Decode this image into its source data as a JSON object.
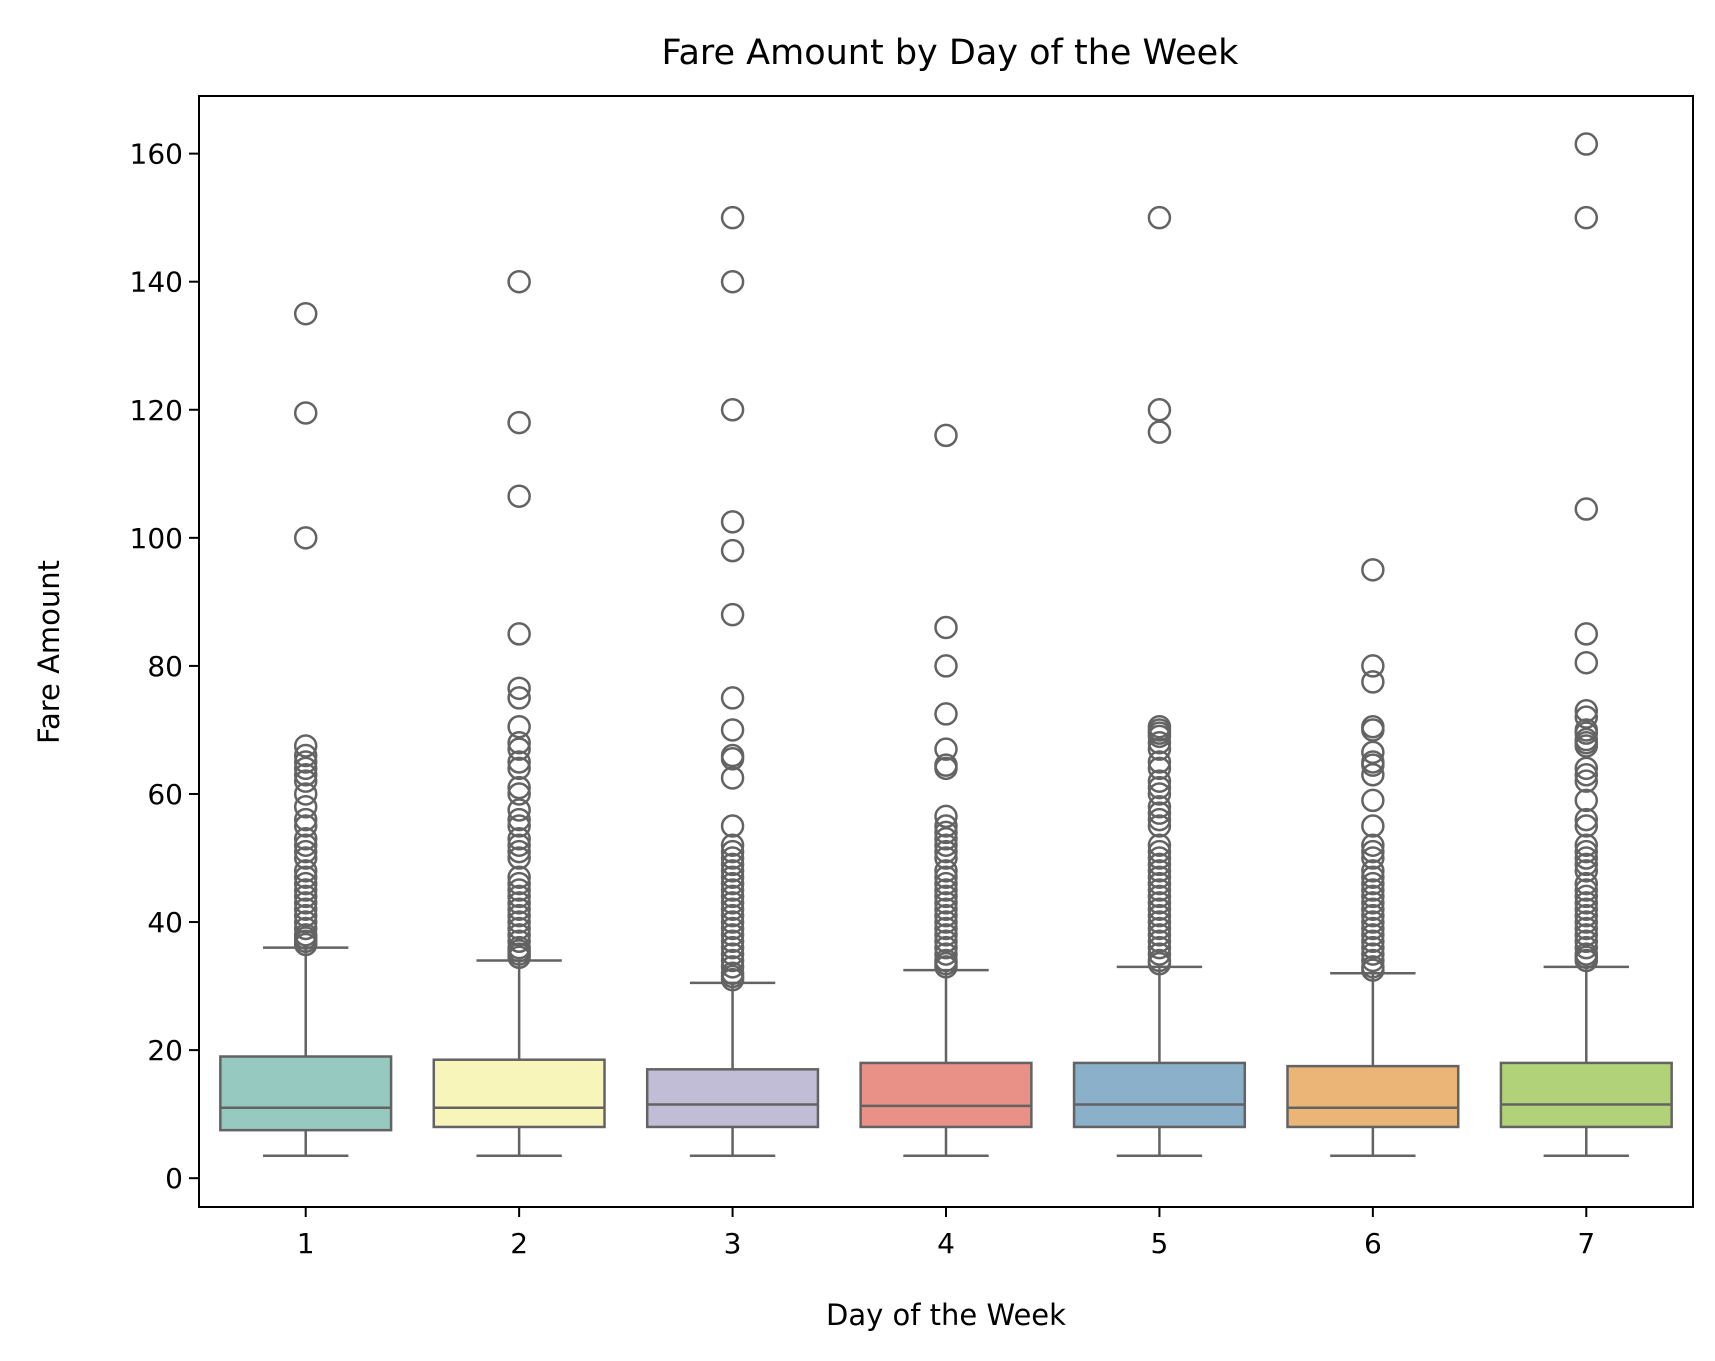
{
  "chart_data": {
    "type": "box",
    "title": "Fare Amount by Day of the Week",
    "xlabel": "Day of the Week",
    "ylabel": "Fare Amount",
    "categories": [
      "1",
      "2",
      "3",
      "4",
      "5",
      "6",
      "7"
    ],
    "y_ticks": [
      0,
      20,
      40,
      60,
      80,
      100,
      120,
      140,
      160
    ],
    "ylim": [
      -4.5,
      169
    ],
    "grid": false,
    "legend": "none",
    "line_color": "#636363",
    "boxes": [
      {
        "category": "1",
        "color": "#96c9c0",
        "whisker_low": 3.5,
        "q1": 7.5,
        "median": 11.0,
        "q3": 19.0,
        "whisker_high": 36.0,
        "outliers": [
          135,
          119.5,
          100,
          67.5,
          66,
          65,
          64,
          63,
          62,
          60,
          58,
          56,
          55,
          53,
          52,
          51,
          50,
          48,
          47,
          46,
          45,
          44,
          43,
          42,
          41,
          40,
          39,
          38,
          37.5,
          37,
          36.5
        ]
      },
      {
        "category": "2",
        "color": "#f7f5b9",
        "whisker_low": 3.5,
        "q1": 8.0,
        "median": 11.0,
        "q3": 18.5,
        "whisker_high": 34.0,
        "outliers": [
          140,
          118,
          106.5,
          85,
          76.5,
          75,
          70.5,
          68,
          67,
          65,
          64,
          61,
          60,
          57.5,
          56,
          55,
          53,
          52,
          51,
          50,
          47,
          46,
          45,
          44,
          43,
          42,
          41,
          40,
          39,
          38,
          37,
          36,
          35.5,
          35,
          34.5
        ]
      },
      {
        "category": "3",
        "color": "#c1bdd6",
        "whisker_low": 3.5,
        "q1": 8.0,
        "median": 11.5,
        "q3": 17.0,
        "whisker_high": 30.5,
        "outliers": [
          150,
          140,
          120,
          102.5,
          98,
          88,
          75,
          70,
          66,
          65.5,
          62.5,
          55,
          52,
          51,
          50,
          49,
          48,
          47,
          46,
          45,
          44,
          43,
          42,
          41,
          40,
          39,
          38,
          37,
          36,
          35,
          34,
          33,
          32,
          31.5,
          31
        ]
      },
      {
        "category": "4",
        "color": "#e99087",
        "whisker_low": 3.5,
        "q1": 8.0,
        "median": 11.3,
        "q3": 18.0,
        "whisker_high": 32.5,
        "outliers": [
          116,
          86,
          80,
          72.5,
          67,
          64.5,
          64,
          56.5,
          55,
          54,
          53,
          52,
          51,
          50,
          48,
          47,
          46,
          45,
          44,
          43,
          42,
          41,
          40,
          39,
          38,
          37,
          36,
          35,
          34,
          33.5,
          33
        ]
      },
      {
        "category": "5",
        "color": "#8bb0ca",
        "whisker_low": 3.5,
        "q1": 8.0,
        "median": 11.5,
        "q3": 18.0,
        "whisker_high": 33.0,
        "outliers": [
          150,
          120,
          116.5,
          70.5,
          70,
          69.5,
          69,
          68,
          67,
          65,
          64,
          62,
          61,
          60,
          58,
          57,
          56,
          55,
          52,
          51,
          50,
          49,
          48,
          47,
          46,
          45,
          44,
          43,
          42,
          41,
          40,
          39,
          38,
          37,
          36,
          35,
          34,
          33.5
        ]
      },
      {
        "category": "6",
        "color": "#ebb577",
        "whisker_low": 3.5,
        "q1": 8.0,
        "median": 11.0,
        "q3": 17.5,
        "whisker_high": 32.0,
        "outliers": [
          95,
          80,
          77.5,
          70.5,
          70,
          66.5,
          65,
          64.5,
          63,
          59,
          55,
          52,
          51,
          50,
          48,
          47,
          46,
          45,
          44,
          43,
          42,
          41,
          40,
          39,
          38,
          37,
          36,
          35,
          34,
          33,
          32.5
        ]
      },
      {
        "category": "7",
        "color": "#b1d279",
        "whisker_low": 3.5,
        "q1": 8.0,
        "median": 11.5,
        "q3": 18.0,
        "whisker_high": 33.0,
        "outliers": [
          161.5,
          150,
          104.5,
          85,
          80.5,
          73,
          72,
          70,
          69.5,
          68.5,
          68,
          67.5,
          64,
          63,
          62,
          59,
          56,
          55,
          52,
          51,
          50,
          49,
          48,
          46,
          45,
          44,
          43,
          42,
          41,
          40,
          39,
          38,
          37,
          36,
          35,
          34.5,
          34
        ]
      }
    ]
  }
}
